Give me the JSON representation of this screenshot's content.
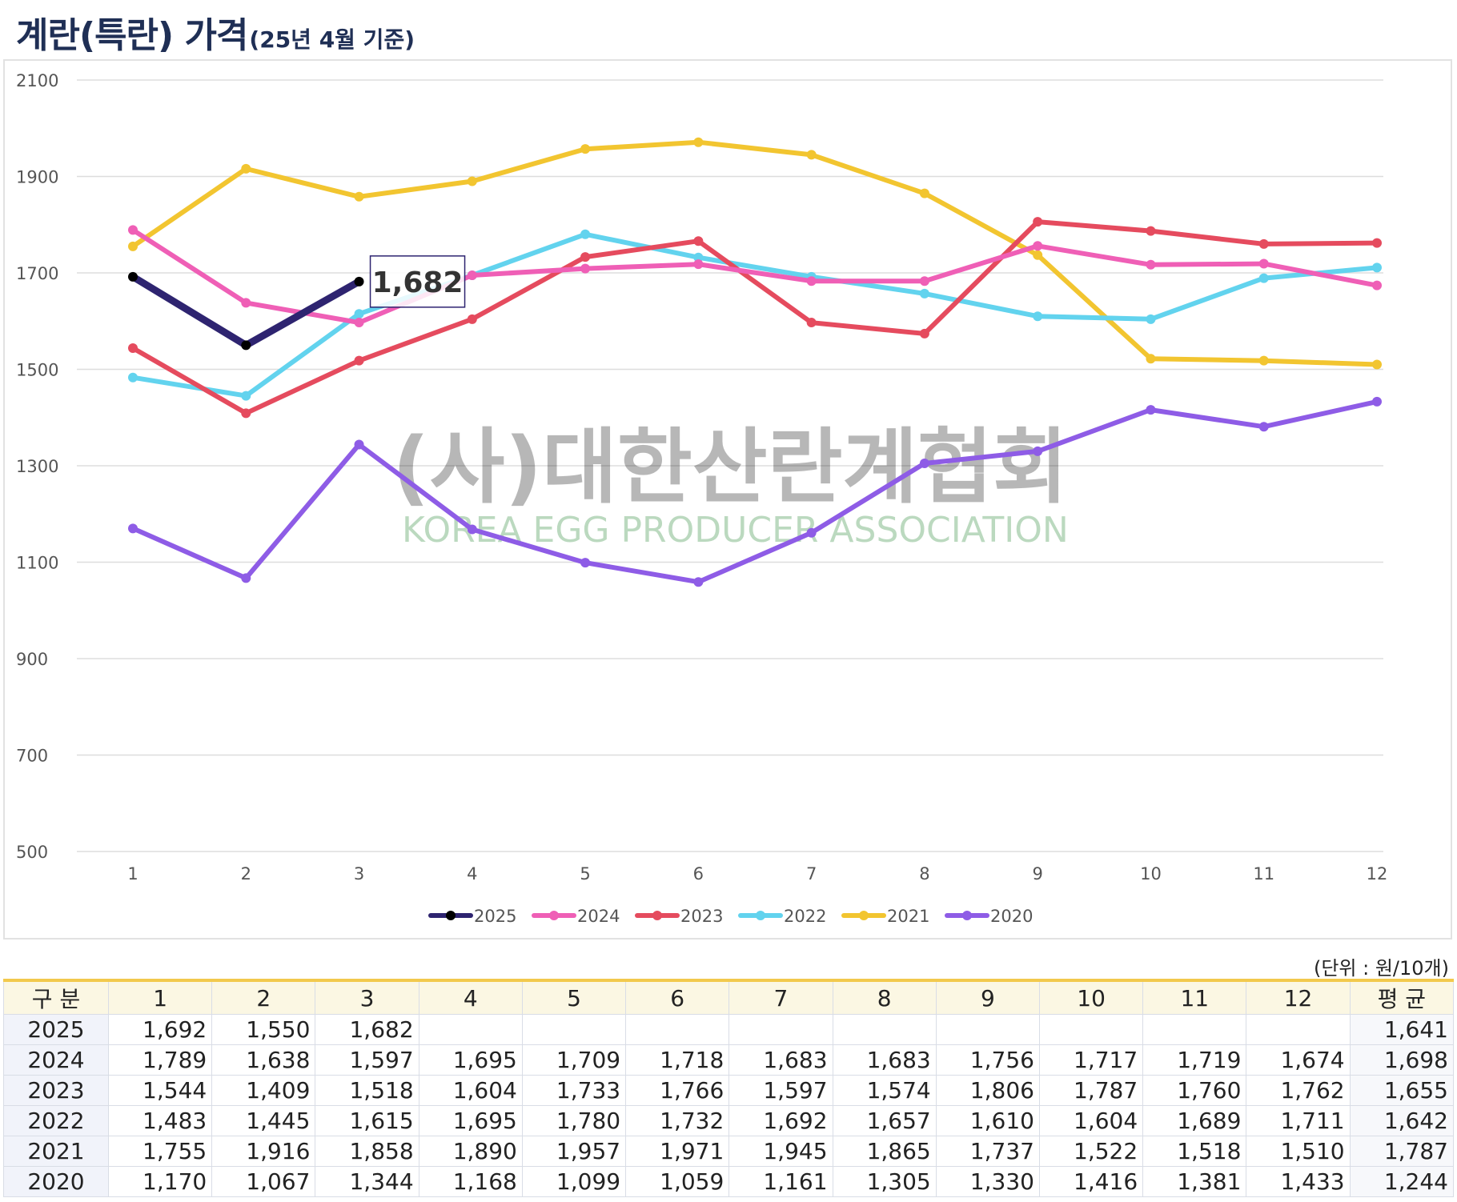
{
  "title": {
    "main": "계란(특란) 가격",
    "sub": "(25년 4월 기준)"
  },
  "watermark": {
    "ko": "(사)대한산란계협회",
    "en": "KOREA EGG PRODUCER ASSOCIATION"
  },
  "colors": {
    "2025": "#2e2470",
    "2024": "#ef5fb6",
    "2023": "#e54b5e",
    "2022": "#62d3ee",
    "2021": "#f2c530",
    "2020": "#8e5ce6"
  },
  "chart_data": {
    "type": "line",
    "title": "계란(특란) 가격",
    "subtitle": "(25년 4월 기준)",
    "x": [
      "1",
      "2",
      "3",
      "4",
      "5",
      "6",
      "7",
      "8",
      "9",
      "10",
      "11",
      "12"
    ],
    "y_ticks": [
      "500",
      "700",
      "900",
      "1100",
      "1300",
      "1500",
      "1700",
      "1900",
      "2100"
    ],
    "ylim": [
      500,
      2100
    ],
    "grid": true,
    "legend": "bottom",
    "callout": {
      "series": "2025",
      "index": 2,
      "label": "1,682"
    },
    "series": [
      {
        "name": "2025",
        "values": [
          1692,
          1550,
          1682,
          null,
          null,
          null,
          null,
          null,
          null,
          null,
          null,
          null
        ]
      },
      {
        "name": "2024",
        "values": [
          1789,
          1638,
          1597,
          1695,
          1709,
          1718,
          1683,
          1683,
          1756,
          1717,
          1719,
          1674
        ]
      },
      {
        "name": "2023",
        "values": [
          1544,
          1409,
          1518,
          1604,
          1733,
          1766,
          1597,
          1574,
          1806,
          1787,
          1760,
          1762
        ]
      },
      {
        "name": "2022",
        "values": [
          1483,
          1445,
          1615,
          1695,
          1780,
          1732,
          1692,
          1657,
          1610,
          1604,
          1689,
          1711
        ]
      },
      {
        "name": "2021",
        "values": [
          1755,
          1916,
          1858,
          1890,
          1957,
          1971,
          1945,
          1865,
          1737,
          1522,
          1518,
          1510
        ]
      },
      {
        "name": "2020",
        "values": [
          1170,
          1067,
          1344,
          1168,
          1099,
          1059,
          1161,
          1305,
          1330,
          1416,
          1381,
          1433
        ]
      }
    ]
  },
  "table": {
    "unit": "(단위 : 원/10개)",
    "headers": [
      "구 분",
      "1",
      "2",
      "3",
      "4",
      "5",
      "6",
      "7",
      "8",
      "9",
      "10",
      "11",
      "12",
      "평 균"
    ],
    "rows": [
      [
        "2025",
        "1,692",
        "1,550",
        "1,682",
        "",
        "",
        "",
        "",
        "",
        "",
        "",
        "",
        "",
        "1,641"
      ],
      [
        "2024",
        "1,789",
        "1,638",
        "1,597",
        "1,695",
        "1,709",
        "1,718",
        "1,683",
        "1,683",
        "1,756",
        "1,717",
        "1,719",
        "1,674",
        "1,698"
      ],
      [
        "2023",
        "1,544",
        "1,409",
        "1,518",
        "1,604",
        "1,733",
        "1,766",
        "1,597",
        "1,574",
        "1,806",
        "1,787",
        "1,760",
        "1,762",
        "1,655"
      ],
      [
        "2022",
        "1,483",
        "1,445",
        "1,615",
        "1,695",
        "1,780",
        "1,732",
        "1,692",
        "1,657",
        "1,610",
        "1,604",
        "1,689",
        "1,711",
        "1,642"
      ],
      [
        "2021",
        "1,755",
        "1,916",
        "1,858",
        "1,890",
        "1,957",
        "1,971",
        "1,945",
        "1,865",
        "1,737",
        "1,522",
        "1,518",
        "1,510",
        "1,787"
      ],
      [
        "2020",
        "1,170",
        "1,067",
        "1,344",
        "1,168",
        "1,099",
        "1,059",
        "1,161",
        "1,305",
        "1,330",
        "1,416",
        "1,381",
        "1,433",
        "1,244"
      ]
    ]
  }
}
